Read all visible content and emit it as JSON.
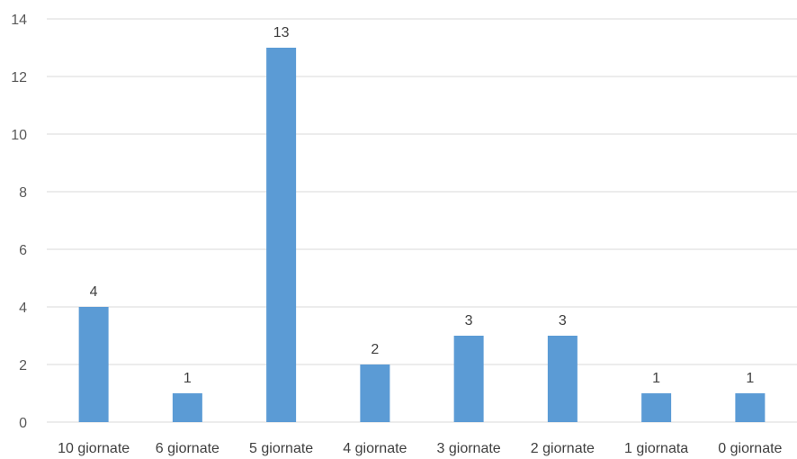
{
  "chart_data": {
    "type": "bar",
    "title": "",
    "xlabel": "",
    "ylabel": "",
    "categories": [
      "10 giornate",
      "6 giornate",
      "5 giornate",
      "4 giornate",
      "3 giornate",
      "2 giornate",
      "1 giornata",
      "0 giornate"
    ],
    "values": [
      4,
      1,
      13,
      2,
      3,
      3,
      1,
      1
    ],
    "ylim": [
      0,
      14
    ],
    "yticks": [
      0,
      2,
      4,
      6,
      8,
      10,
      12,
      14
    ],
    "grid": true,
    "data_labels": true,
    "legend": "none",
    "bar_color": "#5B9BD5",
    "grid_color": "#D9D9D9"
  }
}
